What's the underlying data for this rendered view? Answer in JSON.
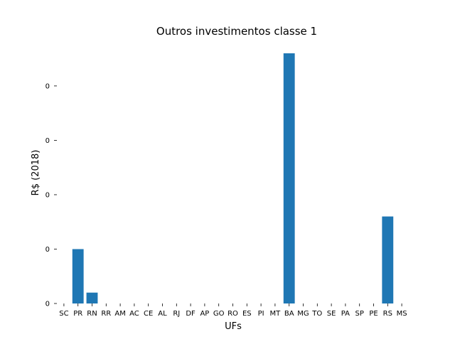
{
  "chart_data": {
    "type": "bar",
    "title": "Outros investimentos classe 1",
    "xlabel": "UFs",
    "ylabel": "R$ (2018)",
    "categories": [
      "SC",
      "PR",
      "RN",
      "RR",
      "AM",
      "AC",
      "CE",
      "AL",
      "RJ",
      "DF",
      "AP",
      "GO",
      "RO",
      "ES",
      "PI",
      "MT",
      "BA",
      "MG",
      "TO",
      "SE",
      "PA",
      "SP",
      "PE",
      "RS",
      "MS"
    ],
    "values": [
      0,
      0.1,
      0.02,
      0,
      0,
      0,
      0,
      0,
      0,
      0,
      0,
      0,
      0,
      0,
      0,
      0,
      0.46,
      0,
      0,
      0,
      0,
      0,
      0,
      0.16,
      0
    ],
    "yticks": [
      0,
      0.1,
      0.2,
      0.3,
      0.4
    ],
    "ytick_labels": [
      "0",
      "0",
      "0",
      "0",
      "0"
    ],
    "ylim": [
      0,
      0.46
    ],
    "grid": false,
    "bar_color": "#1f77b4"
  }
}
